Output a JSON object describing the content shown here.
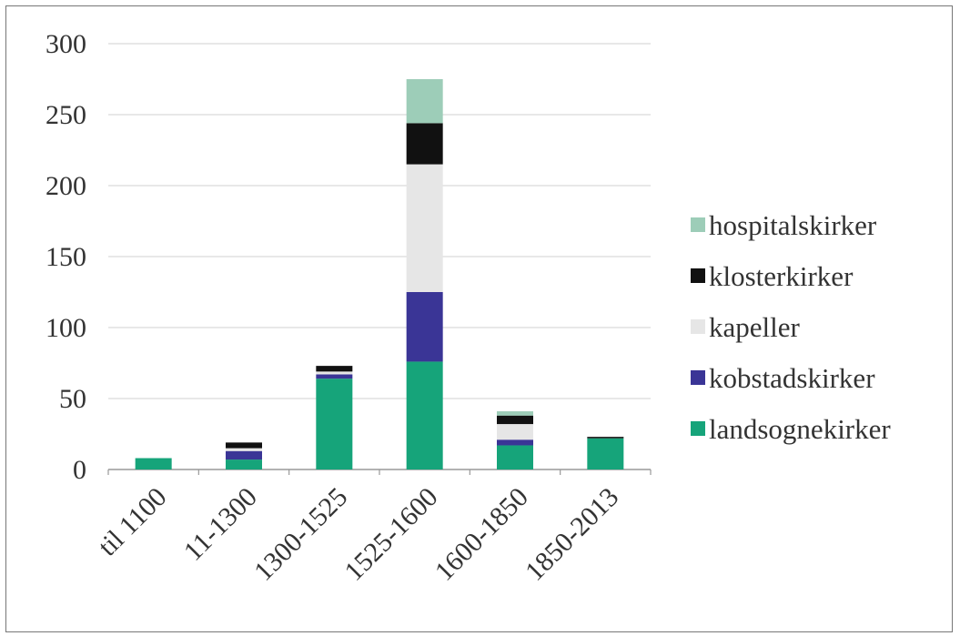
{
  "chart_data": {
    "type": "bar",
    "stacked": true,
    "title": "",
    "xlabel": "",
    "ylabel": "",
    "categories": [
      "til 1100",
      "11-1300",
      "1300-1525",
      "1525-1600",
      "1600-1850",
      "1850-2013"
    ],
    "ylim": [
      0,
      300
    ],
    "yticks": [
      0,
      50,
      100,
      150,
      200,
      250,
      300
    ],
    "grid": "horizontal",
    "legend_position": "right",
    "series": [
      {
        "name": "landsognekirker",
        "color": "#16a47a",
        "values": [
          8,
          7,
          64,
          76,
          17,
          22
        ]
      },
      {
        "name": "kobstadskirker",
        "color": "#3a3596",
        "values": [
          0,
          6,
          3,
          49,
          4,
          0
        ]
      },
      {
        "name": "kapeller",
        "color": "#e6e6e6",
        "values": [
          0,
          2,
          2,
          90,
          11,
          0
        ]
      },
      {
        "name": "klosterkirker",
        "color": "#111111",
        "values": [
          0,
          4,
          4,
          29,
          6,
          1
        ]
      },
      {
        "name": "hospitalskirker",
        "color": "#9dcdb8",
        "values": [
          0,
          0,
          0,
          31,
          3,
          0
        ]
      }
    ]
  }
}
